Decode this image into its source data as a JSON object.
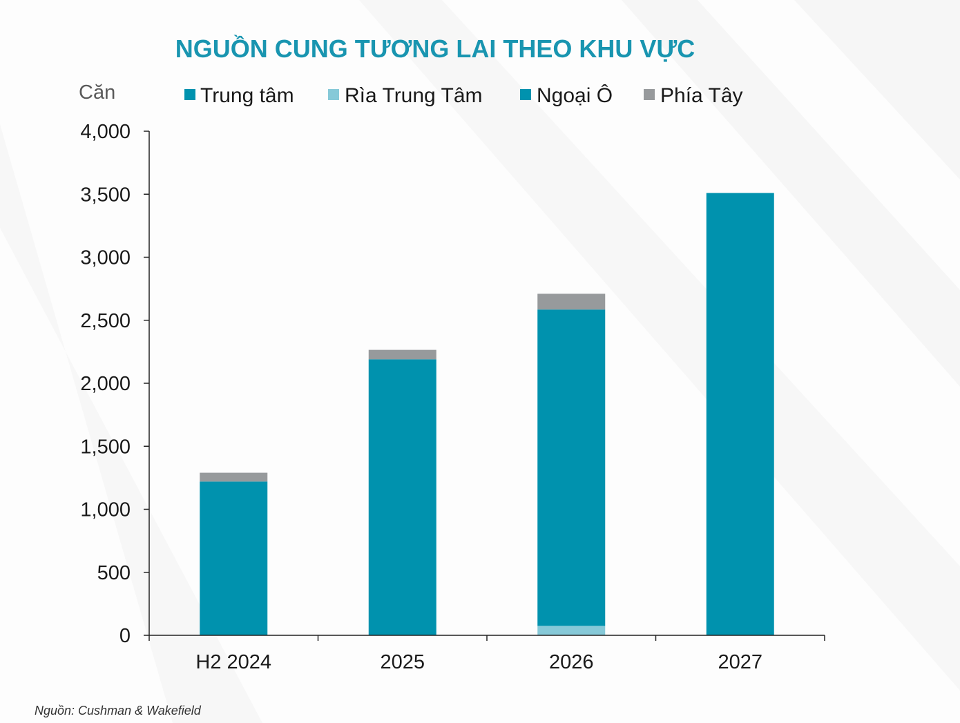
{
  "source": "Nguồn: Cushman & Wakefield",
  "colors": {
    "title": "#1995b0",
    "axis": "#222222",
    "teal": "#0092ae",
    "light_blue": "#86c9d8",
    "gray": "#979a9c"
  },
  "chart_data": {
    "type": "bar",
    "stacked": true,
    "title": "NGUỒN CUNG TƯƠNG LAI THEO KHU VỰC",
    "ylabel": "Căn",
    "xlabel": "",
    "categories": [
      "H2 2024",
      "2025",
      "2026",
      "2027"
    ],
    "series": [
      {
        "name": "Trung tâm",
        "color": "#0092ae",
        "values": [
          0,
          0,
          0,
          0
        ]
      },
      {
        "name": "Rìa Trung Tâm",
        "color": "#86c9d8",
        "values": [
          0,
          0,
          75,
          0
        ]
      },
      {
        "name": "Ngoại Ô",
        "color": "#0092ae",
        "values": [
          1220,
          2190,
          2510,
          3510
        ]
      },
      {
        "name": "Phía Tây",
        "color": "#979a9c",
        "values": [
          70,
          75,
          125,
          0
        ]
      }
    ],
    "ylim": [
      0,
      4000
    ],
    "yticks": [
      0,
      500,
      1000,
      1500,
      2000,
      2500,
      3000,
      3500,
      4000
    ],
    "ytick_labels": [
      "0",
      "500",
      "1,000",
      "1,500",
      "2,000",
      "2,500",
      "3,000",
      "3,500",
      "4,000"
    ],
    "grid": false,
    "legend_position": "top"
  }
}
